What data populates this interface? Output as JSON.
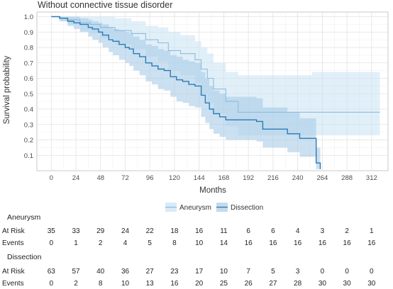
{
  "chart_data": {
    "type": "line",
    "subtype": "kaplan-meier-step",
    "title": "Without connective tissue disorder",
    "xlabel": "Months",
    "ylabel": "Survival probability",
    "xlim": [
      -14,
      328
    ],
    "ylim": [
      0.0,
      1.03
    ],
    "xticks": [
      0,
      24,
      48,
      72,
      96,
      120,
      144,
      168,
      192,
      216,
      240,
      264,
      288,
      312
    ],
    "yticks": [
      0.1,
      0.2,
      0.3,
      0.4,
      0.5,
      0.6,
      0.7,
      0.8,
      0.9,
      1.0
    ],
    "grid": true,
    "legend_position": "bottom",
    "series": [
      {
        "name": "Aneurysm",
        "color": "#8cbcdc",
        "band_color": "#c9e2f4",
        "x": [
          0,
          9,
          16,
          28,
          38,
          48,
          62,
          78,
          92,
          104,
          114,
          126,
          140,
          146,
          152,
          158,
          170,
          182,
          254,
          320
        ],
        "y": [
          1.0,
          0.99,
          0.98,
          0.96,
          0.95,
          0.93,
          0.91,
          0.89,
          0.85,
          0.83,
          0.78,
          0.76,
          0.72,
          0.66,
          0.6,
          0.53,
          0.45,
          0.38,
          0.38,
          0.38
        ],
        "lower": [
          1.0,
          0.97,
          0.95,
          0.91,
          0.89,
          0.86,
          0.82,
          0.79,
          0.74,
          0.71,
          0.65,
          0.62,
          0.57,
          0.5,
          0.44,
          0.37,
          0.29,
          0.23,
          0.23,
          0.23
        ],
        "upper": [
          1.0,
          1.0,
          1.0,
          1.0,
          1.0,
          1.0,
          0.99,
          0.97,
          0.94,
          0.93,
          0.9,
          0.88,
          0.84,
          0.8,
          0.76,
          0.7,
          0.64,
          0.62,
          0.64,
          0.64
        ]
      },
      {
        "name": "Dissection",
        "color": "#2c7bb6",
        "band_color": "#a9cce6",
        "x": [
          0,
          8,
          16,
          22,
          28,
          36,
          40,
          46,
          50,
          56,
          60,
          66,
          72,
          76,
          80,
          86,
          92,
          98,
          104,
          110,
          116,
          122,
          128,
          134,
          140,
          146,
          150,
          154,
          158,
          164,
          170,
          176,
          182,
          188,
          194,
          200,
          206,
          212,
          218,
          224,
          230,
          236,
          242,
          248,
          254,
          258,
          262
        ],
        "y": [
          1.0,
          0.99,
          0.97,
          0.96,
          0.95,
          0.93,
          0.92,
          0.9,
          0.88,
          0.85,
          0.84,
          0.82,
          0.8,
          0.79,
          0.76,
          0.74,
          0.7,
          0.68,
          0.66,
          0.65,
          0.61,
          0.59,
          0.58,
          0.56,
          0.55,
          0.49,
          0.44,
          0.4,
          0.37,
          0.35,
          0.33,
          0.33,
          0.33,
          0.33,
          0.33,
          0.32,
          0.27,
          0.27,
          0.27,
          0.27,
          0.24,
          0.24,
          0.21,
          0.21,
          0.21,
          0.05,
          0.01
        ],
        "lower": [
          1.0,
          0.97,
          0.94,
          0.92,
          0.9,
          0.87,
          0.85,
          0.83,
          0.8,
          0.77,
          0.75,
          0.72,
          0.7,
          0.68,
          0.65,
          0.62,
          0.58,
          0.56,
          0.53,
          0.52,
          0.48,
          0.45,
          0.44,
          0.42,
          0.41,
          0.35,
          0.31,
          0.27,
          0.24,
          0.22,
          0.2,
          0.2,
          0.2,
          0.2,
          0.2,
          0.19,
          0.15,
          0.15,
          0.15,
          0.15,
          0.12,
          0.12,
          0.09,
          0.09,
          0.09,
          0.01,
          0.0
        ],
        "upper": [
          1.0,
          1.0,
          1.0,
          1.0,
          0.99,
          0.98,
          0.97,
          0.96,
          0.95,
          0.93,
          0.92,
          0.91,
          0.9,
          0.89,
          0.87,
          0.85,
          0.82,
          0.81,
          0.79,
          0.78,
          0.75,
          0.74,
          0.72,
          0.71,
          0.7,
          0.64,
          0.6,
          0.55,
          0.52,
          0.5,
          0.48,
          0.48,
          0.48,
          0.48,
          0.48,
          0.47,
          0.41,
          0.41,
          0.41,
          0.41,
          0.38,
          0.38,
          0.34,
          0.34,
          0.34,
          0.15,
          0.05
        ]
      }
    ]
  },
  "risk_table": {
    "time_points": [
      0,
      24,
      48,
      72,
      96,
      120,
      144,
      168,
      192,
      216,
      240,
      264,
      288,
      312
    ],
    "row_labels": {
      "at_risk": "At Risk",
      "events": "Events"
    },
    "groups": [
      {
        "name": "Aneurysm",
        "at_risk": [
          "35",
          "33",
          "29",
          "24",
          "22",
          "18",
          "16",
          "11",
          "6",
          "6",
          "4",
          "3",
          "2",
          "1"
        ],
        "events": [
          "0",
          "1",
          "2",
          "4",
          "5",
          "8",
          "10",
          "14",
          "16",
          "16",
          "16",
          "16",
          "16",
          "16"
        ]
      },
      {
        "name": "Dissection",
        "at_risk": [
          "63",
          "57",
          "40",
          "36",
          "27",
          "23",
          "17",
          "10",
          "7",
          "5",
          "3",
          "0",
          "0",
          "0"
        ],
        "events": [
          "0",
          "2",
          "8",
          "10",
          "13",
          "16",
          "20",
          "25",
          "26",
          "27",
          "28",
          "30",
          "30",
          "30"
        ]
      }
    ]
  }
}
